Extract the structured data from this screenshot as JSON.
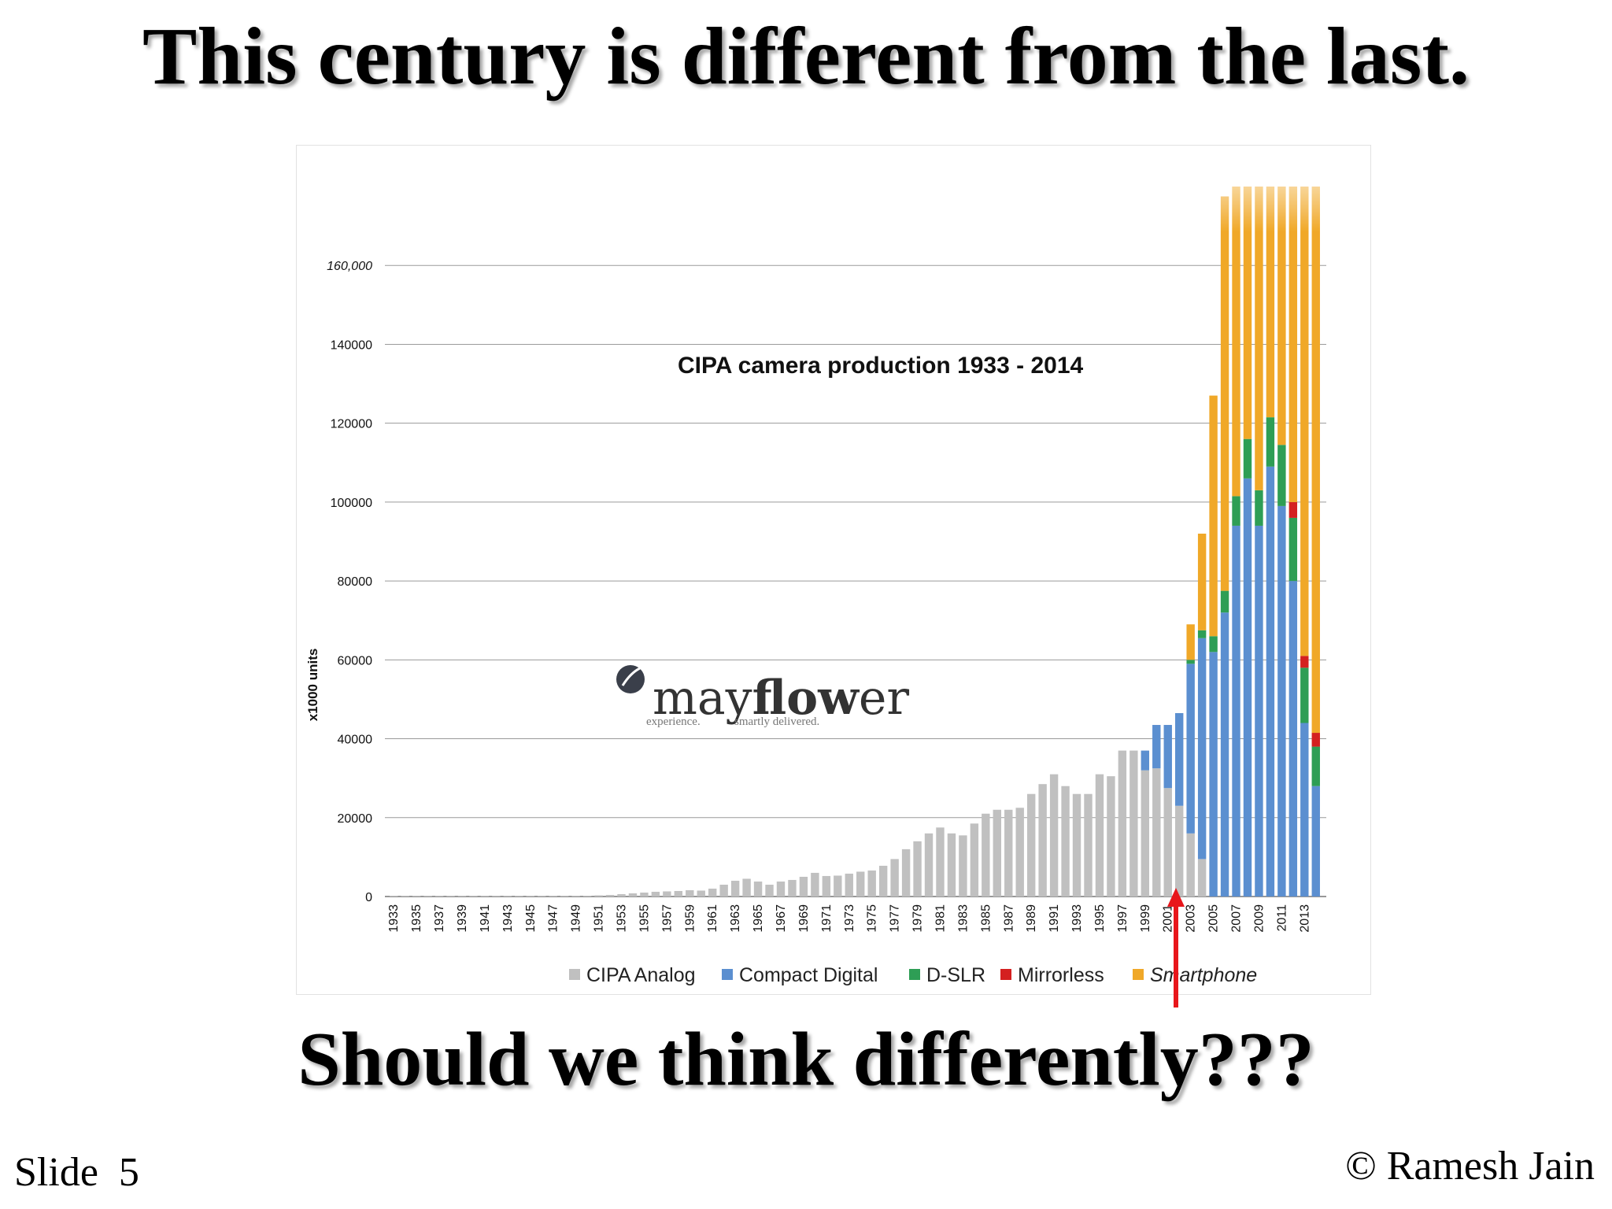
{
  "slide": {
    "title": "This century is different from the last.",
    "question": "Should we think differently???",
    "slide_number": "Slide  5",
    "copyright": "© Ramesh Jain"
  },
  "watermark": {
    "brand_regular_1": "may",
    "brand_bold": "flow",
    "brand_regular_2": "er",
    "tagline_left": "experience.",
    "tagline_right": "smartly delivered."
  },
  "colors": {
    "analog": "#c0c0c0",
    "compact": "#5b8fd0",
    "dslr": "#2e9e55",
    "mirrorless": "#d42020",
    "smartphone": "#f0a828",
    "grid": "#9a9a9a",
    "arrow": "#e8161b"
  },
  "chart_data": {
    "type": "bar",
    "stacked": true,
    "title": "CIPA  camera production 1933 - 2014",
    "ylabel": "x1000 units",
    "ylim": [
      0,
      180000
    ],
    "yticks": [
      0,
      20000,
      40000,
      60000,
      80000,
      100000,
      120000,
      140000,
      160000
    ],
    "ytick_labels": [
      "0",
      "20000",
      "40000",
      "60000",
      "80000",
      "100000",
      "120000",
      "140000",
      "160,000"
    ],
    "legend_position": "bottom",
    "grid": true,
    "categories": [
      1933,
      1934,
      1935,
      1936,
      1937,
      1938,
      1939,
      1940,
      1941,
      1942,
      1943,
      1944,
      1945,
      1946,
      1947,
      1948,
      1949,
      1950,
      1951,
      1952,
      1953,
      1954,
      1955,
      1956,
      1957,
      1958,
      1959,
      1960,
      1961,
      1962,
      1963,
      1964,
      1965,
      1966,
      1967,
      1968,
      1969,
      1970,
      1971,
      1972,
      1973,
      1974,
      1975,
      1976,
      1977,
      1978,
      1979,
      1980,
      1981,
      1982,
      1983,
      1984,
      1985,
      1986,
      1987,
      1988,
      1989,
      1990,
      1991,
      1992,
      1993,
      1994,
      1995,
      1996,
      1997,
      1998,
      1999,
      2000,
      2001,
      2002,
      2003,
      2004,
      2005,
      2006,
      2007,
      2008,
      2009,
      2010,
      2011,
      2012,
      2013,
      2014
    ],
    "xtick_labels": [
      "1933",
      "1935",
      "1937",
      "1939",
      "1941",
      "1943",
      "1945",
      "1947",
      "1949",
      "1951",
      "1953",
      "1955",
      "1957",
      "1959",
      "1961",
      "1963",
      "1965",
      "1967",
      "1969",
      "1971",
      "1973",
      "1975",
      "1977",
      "1979",
      "1981",
      "1983",
      "1985",
      "1987",
      "1989",
      "1991",
      "1993",
      "1995",
      "1997",
      "1999",
      "2001",
      "2003",
      "2005",
      "2007",
      "2009",
      "2011",
      "2013"
    ],
    "series": [
      {
        "name": "CIPA Analog",
        "values": [
          200,
          200,
          200,
          200,
          200,
          200,
          200,
          200,
          200,
          200,
          200,
          200,
          200,
          200,
          200,
          200,
          200,
          200,
          300,
          400,
          600,
          800,
          1000,
          1200,
          1300,
          1400,
          1600,
          1500,
          2000,
          3000,
          4000,
          4500,
          3800,
          3000,
          3800,
          4200,
          5000,
          6000,
          5200,
          5300,
          5800,
          6300,
          6600,
          7800,
          9500,
          12000,
          14000,
          16000,
          17500,
          16000,
          15500,
          18500,
          21000,
          22000,
          22000,
          22500,
          26000,
          28500,
          31000,
          28000,
          26000,
          26000,
          31000,
          30500,
          37000,
          37000,
          32000,
          32500,
          27500,
          23000,
          16000,
          9500,
          0,
          0,
          0,
          0,
          0,
          0,
          0,
          0,
          0,
          0
        ]
      },
      {
        "name": "Compact Digital",
        "values": [
          0,
          0,
          0,
          0,
          0,
          0,
          0,
          0,
          0,
          0,
          0,
          0,
          0,
          0,
          0,
          0,
          0,
          0,
          0,
          0,
          0,
          0,
          0,
          0,
          0,
          0,
          0,
          0,
          0,
          0,
          0,
          0,
          0,
          0,
          0,
          0,
          0,
          0,
          0,
          0,
          0,
          0,
          0,
          0,
          0,
          0,
          0,
          0,
          0,
          0,
          0,
          0,
          0,
          0,
          0,
          0,
          0,
          0,
          0,
          0,
          0,
          0,
          0,
          0,
          0,
          0,
          5000,
          11000,
          16000,
          23500,
          43000,
          56000,
          62000,
          72000,
          94000,
          106000,
          94000,
          109000,
          99000,
          80000,
          44000,
          28000
        ]
      },
      {
        "name": "D-SLR",
        "values": [
          0,
          0,
          0,
          0,
          0,
          0,
          0,
          0,
          0,
          0,
          0,
          0,
          0,
          0,
          0,
          0,
          0,
          0,
          0,
          0,
          0,
          0,
          0,
          0,
          0,
          0,
          0,
          0,
          0,
          0,
          0,
          0,
          0,
          0,
          0,
          0,
          0,
          0,
          0,
          0,
          0,
          0,
          0,
          0,
          0,
          0,
          0,
          0,
          0,
          0,
          0,
          0,
          0,
          0,
          0,
          0,
          0,
          0,
          0,
          0,
          0,
          0,
          0,
          0,
          0,
          0,
          0,
          0,
          0,
          0,
          1000,
          2000,
          4000,
          5500,
          7500,
          10000,
          9000,
          12500,
          15500,
          16000,
          14000,
          10000
        ]
      },
      {
        "name": "Mirrorless",
        "values": [
          0,
          0,
          0,
          0,
          0,
          0,
          0,
          0,
          0,
          0,
          0,
          0,
          0,
          0,
          0,
          0,
          0,
          0,
          0,
          0,
          0,
          0,
          0,
          0,
          0,
          0,
          0,
          0,
          0,
          0,
          0,
          0,
          0,
          0,
          0,
          0,
          0,
          0,
          0,
          0,
          0,
          0,
          0,
          0,
          0,
          0,
          0,
          0,
          0,
          0,
          0,
          0,
          0,
          0,
          0,
          0,
          0,
          0,
          0,
          0,
          0,
          0,
          0,
          0,
          0,
          0,
          0,
          0,
          0,
          0,
          0,
          0,
          0,
          0,
          0,
          0,
          0,
          0,
          0,
          4000,
          3000,
          3500
        ]
      },
      {
        "name": "Smartphone",
        "values": [
          0,
          0,
          0,
          0,
          0,
          0,
          0,
          0,
          0,
          0,
          0,
          0,
          0,
          0,
          0,
          0,
          0,
          0,
          0,
          0,
          0,
          0,
          0,
          0,
          0,
          0,
          0,
          0,
          0,
          0,
          0,
          0,
          0,
          0,
          0,
          0,
          0,
          0,
          0,
          0,
          0,
          0,
          0,
          0,
          0,
          0,
          0,
          0,
          0,
          0,
          0,
          0,
          0,
          0,
          0,
          0,
          0,
          0,
          0,
          0,
          0,
          0,
          0,
          0,
          0,
          0,
          0,
          0,
          0,
          0,
          9000,
          24500,
          61000,
          100000,
          80000,
          66000,
          79000,
          60000,
          67000,
          82000,
          121000,
          140000
        ]
      }
    ],
    "annotation": "red arrow pointing up at 2000"
  }
}
